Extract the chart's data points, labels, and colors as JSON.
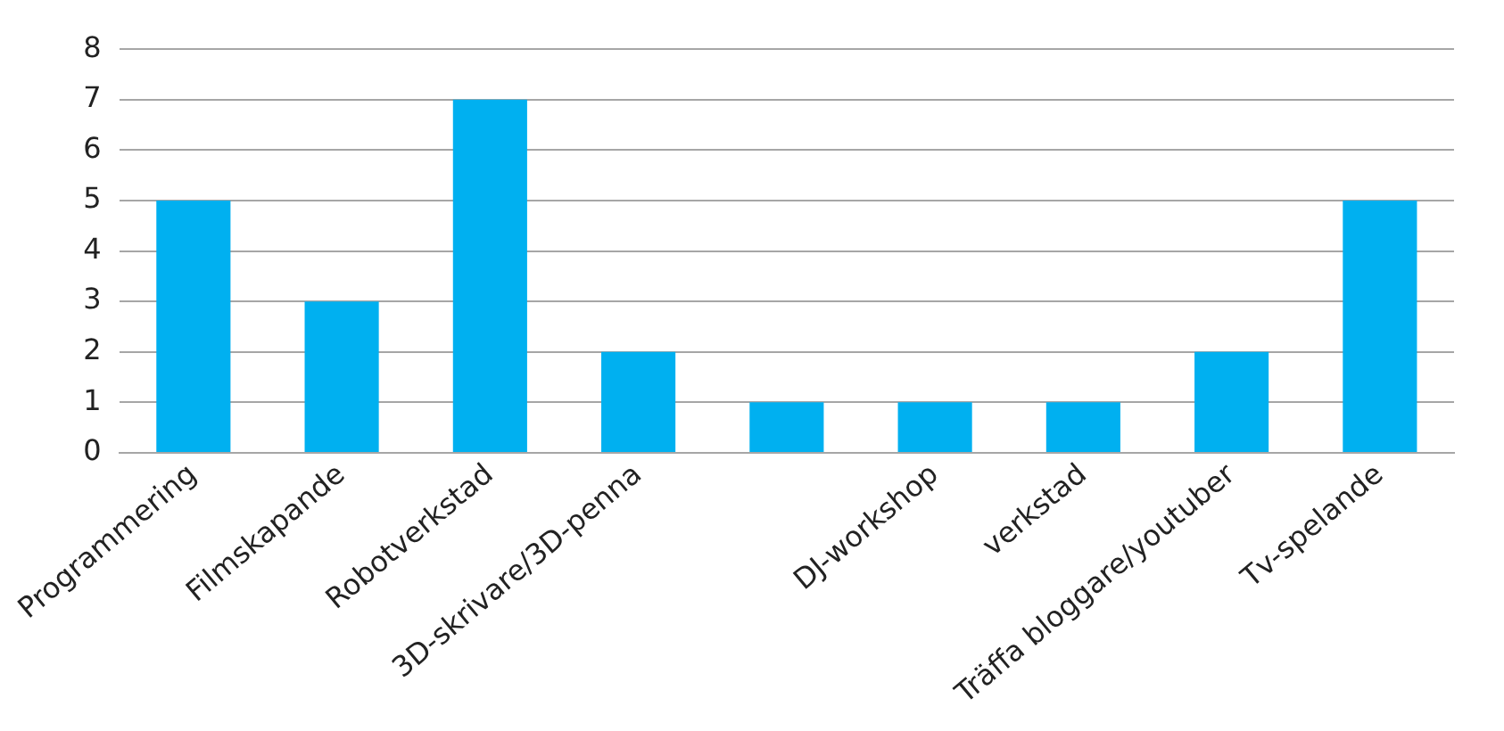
{
  "chart_data": {
    "type": "bar",
    "categories": [
      "Programmering",
      "Filmskapande",
      "Robotverkstad",
      "3D-skrivare/3D-penna",
      null,
      "DJ-workshop",
      "verkstad",
      "Träffa bloggare/youtuber",
      "Tv-spelande"
    ],
    "values": [
      5,
      3,
      7,
      2,
      1,
      1,
      1,
      2,
      5
    ],
    "color": "#00b0f0",
    "ylim": [
      0,
      8
    ],
    "yticks": [
      0,
      1,
      2,
      3,
      4,
      5,
      6,
      7,
      8
    ],
    "grid": "y",
    "legend": false
  }
}
